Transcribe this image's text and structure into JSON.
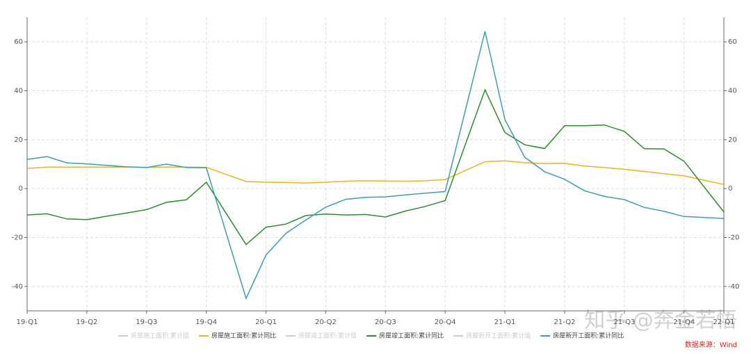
{
  "chart_data": {
    "type": "line",
    "x": [
      0,
      1,
      2,
      3,
      4,
      5,
      6,
      7,
      8,
      9,
      11,
      12,
      13,
      14,
      15,
      16,
      17,
      18,
      19,
      20,
      21,
      23,
      24,
      25,
      26,
      27,
      28,
      29,
      30,
      31,
      32,
      33,
      35
    ],
    "xlim": [
      0,
      35
    ],
    "xticks": [
      {
        "value": 0,
        "label": "19-Q1"
      },
      {
        "value": 3,
        "label": "19-Q2"
      },
      {
        "value": 6,
        "label": "19-Q3"
      },
      {
        "value": 9,
        "label": "19-Q4"
      },
      {
        "value": 12,
        "label": "20-Q1"
      },
      {
        "value": 15,
        "label": "20-Q2"
      },
      {
        "value": 18,
        "label": "20-Q3"
      },
      {
        "value": 21,
        "label": "20-Q4"
      },
      {
        "value": 24,
        "label": "21-Q1"
      },
      {
        "value": 27,
        "label": "21-Q2"
      },
      {
        "value": 30,
        "label": "21-Q3"
      },
      {
        "value": 33,
        "label": "21-Q4"
      },
      {
        "value": 35,
        "label": "22-Q1"
      }
    ],
    "ylim": [
      -50,
      70
    ],
    "yticks": [
      -40,
      -20,
      0,
      20,
      40,
      60
    ],
    "y2lim": [
      -50,
      70
    ],
    "y2ticks": [
      -40,
      -20,
      0,
      20,
      40,
      60
    ],
    "grid": true,
    "series": [
      {
        "name": "房屋施工面积:累计同比",
        "color": "#e6b422",
        "values": [
          8.2,
          8.8,
          8.8,
          8.8,
          8.8,
          8.8,
          8.7,
          8.8,
          8.8,
          8.7,
          2.9,
          2.6,
          2.5,
          2.3,
          2.6,
          3.0,
          3.2,
          3.1,
          3.0,
          3.2,
          3.7,
          11.0,
          11.3,
          10.6,
          10.2,
          10.3,
          9.2,
          8.6,
          7.9,
          7.0,
          6.1,
          5.2,
          1.7
        ]
      },
      {
        "name": "房屋竣工面积:累计同比",
        "color": "#2e8b2e",
        "values": [
          -10.8,
          -10.3,
          -12.4,
          -12.7,
          -11.3,
          -10.0,
          -8.6,
          -5.6,
          -4.6,
          2.6,
          -22.9,
          -15.8,
          -14.5,
          -11.0,
          -10.4,
          -10.8,
          -10.6,
          -11.6,
          -9.2,
          -7.3,
          -4.9,
          40.4,
          22.9,
          17.9,
          16.4,
          25.7,
          25.7,
          26.0,
          23.4,
          16.3,
          16.2,
          11.2,
          -9.6
        ]
      },
      {
        "name": "房屋新开工面积:累计同比",
        "color": "#3a9db5",
        "values": [
          11.9,
          13.1,
          10.5,
          10.1,
          9.5,
          8.9,
          8.6,
          10.0,
          8.6,
          8.5,
          -44.9,
          -27.2,
          -18.3,
          -12.8,
          -7.6,
          -4.4,
          -3.6,
          -3.4,
          -2.6,
          -1.9,
          -1.2,
          64.3,
          28.2,
          12.8,
          6.9,
          3.8,
          -0.9,
          -3.2,
          -4.5,
          -7.7,
          -9.3,
          -11.4,
          -12.2
        ]
      }
    ],
    "legend": [
      {
        "name": "房屋施工面积:累计值",
        "hidden": true
      },
      {
        "series": 0
      },
      {
        "name": "房屋竣工面积:累计值",
        "hidden": true
      },
      {
        "series": 1
      },
      {
        "name": "房屋新开工面积:累计值",
        "hidden": true
      },
      {
        "series": 2
      }
    ],
    "hidden_color": "#cccccc",
    "source": "数据来源：Wind",
    "watermark": "知乎 @奔金若悟"
  }
}
